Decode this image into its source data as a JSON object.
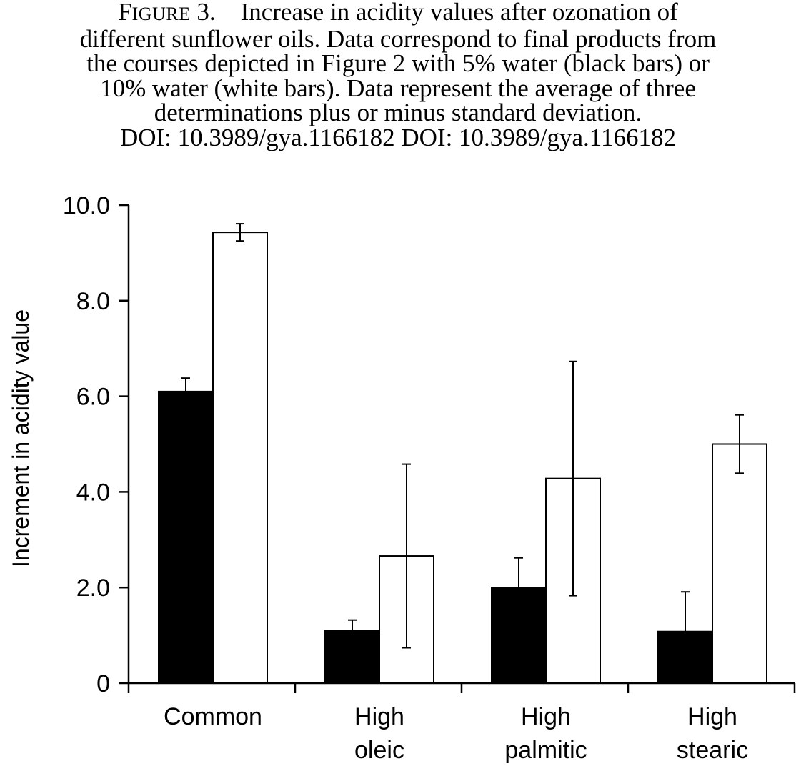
{
  "caption": {
    "figure_label_initial": "F",
    "figure_label_rest": "IGURE",
    "figure_number": "3.",
    "lines": [
      "Increase in acidity values after ozonation of",
      "different sunflower oils. Data correspond to final products from",
      "the courses depicted in Figure 2 with 5% water (black bars) or",
      "10% water (white bars). Data represent the average of three",
      "determinations plus or minus standard deviation.",
      "DOI: 10.3989/gya.1166182 DOI: 10.3989/gya.1166182"
    ]
  },
  "chart_data": {
    "type": "bar",
    "categories": [
      [
        "Common"
      ],
      [
        "High",
        "oleic"
      ],
      [
        "High",
        "palmitic"
      ],
      [
        "High",
        "stearic"
      ]
    ],
    "series": [
      {
        "fill": "#000000",
        "values": [
          6.1,
          1.1,
          2.0,
          1.08
        ],
        "errors": [
          0.28,
          0.22,
          0.62,
          0.83
        ]
      },
      {
        "fill": "#ffffff",
        "values": [
          9.43,
          2.66,
          4.28,
          5.0
        ],
        "errors": [
          0.18,
          1.92,
          2.45,
          0.61
        ]
      }
    ],
    "ylabel": "Increment in acidity value",
    "ylim": [
      0,
      10
    ],
    "yticks": [
      0,
      2,
      4,
      6,
      8,
      10
    ],
    "ytick_labels": [
      "0",
      "2.0",
      "4.0",
      "6.0",
      "8.0",
      "10.0"
    ],
    "grid": false,
    "legend": "none"
  }
}
